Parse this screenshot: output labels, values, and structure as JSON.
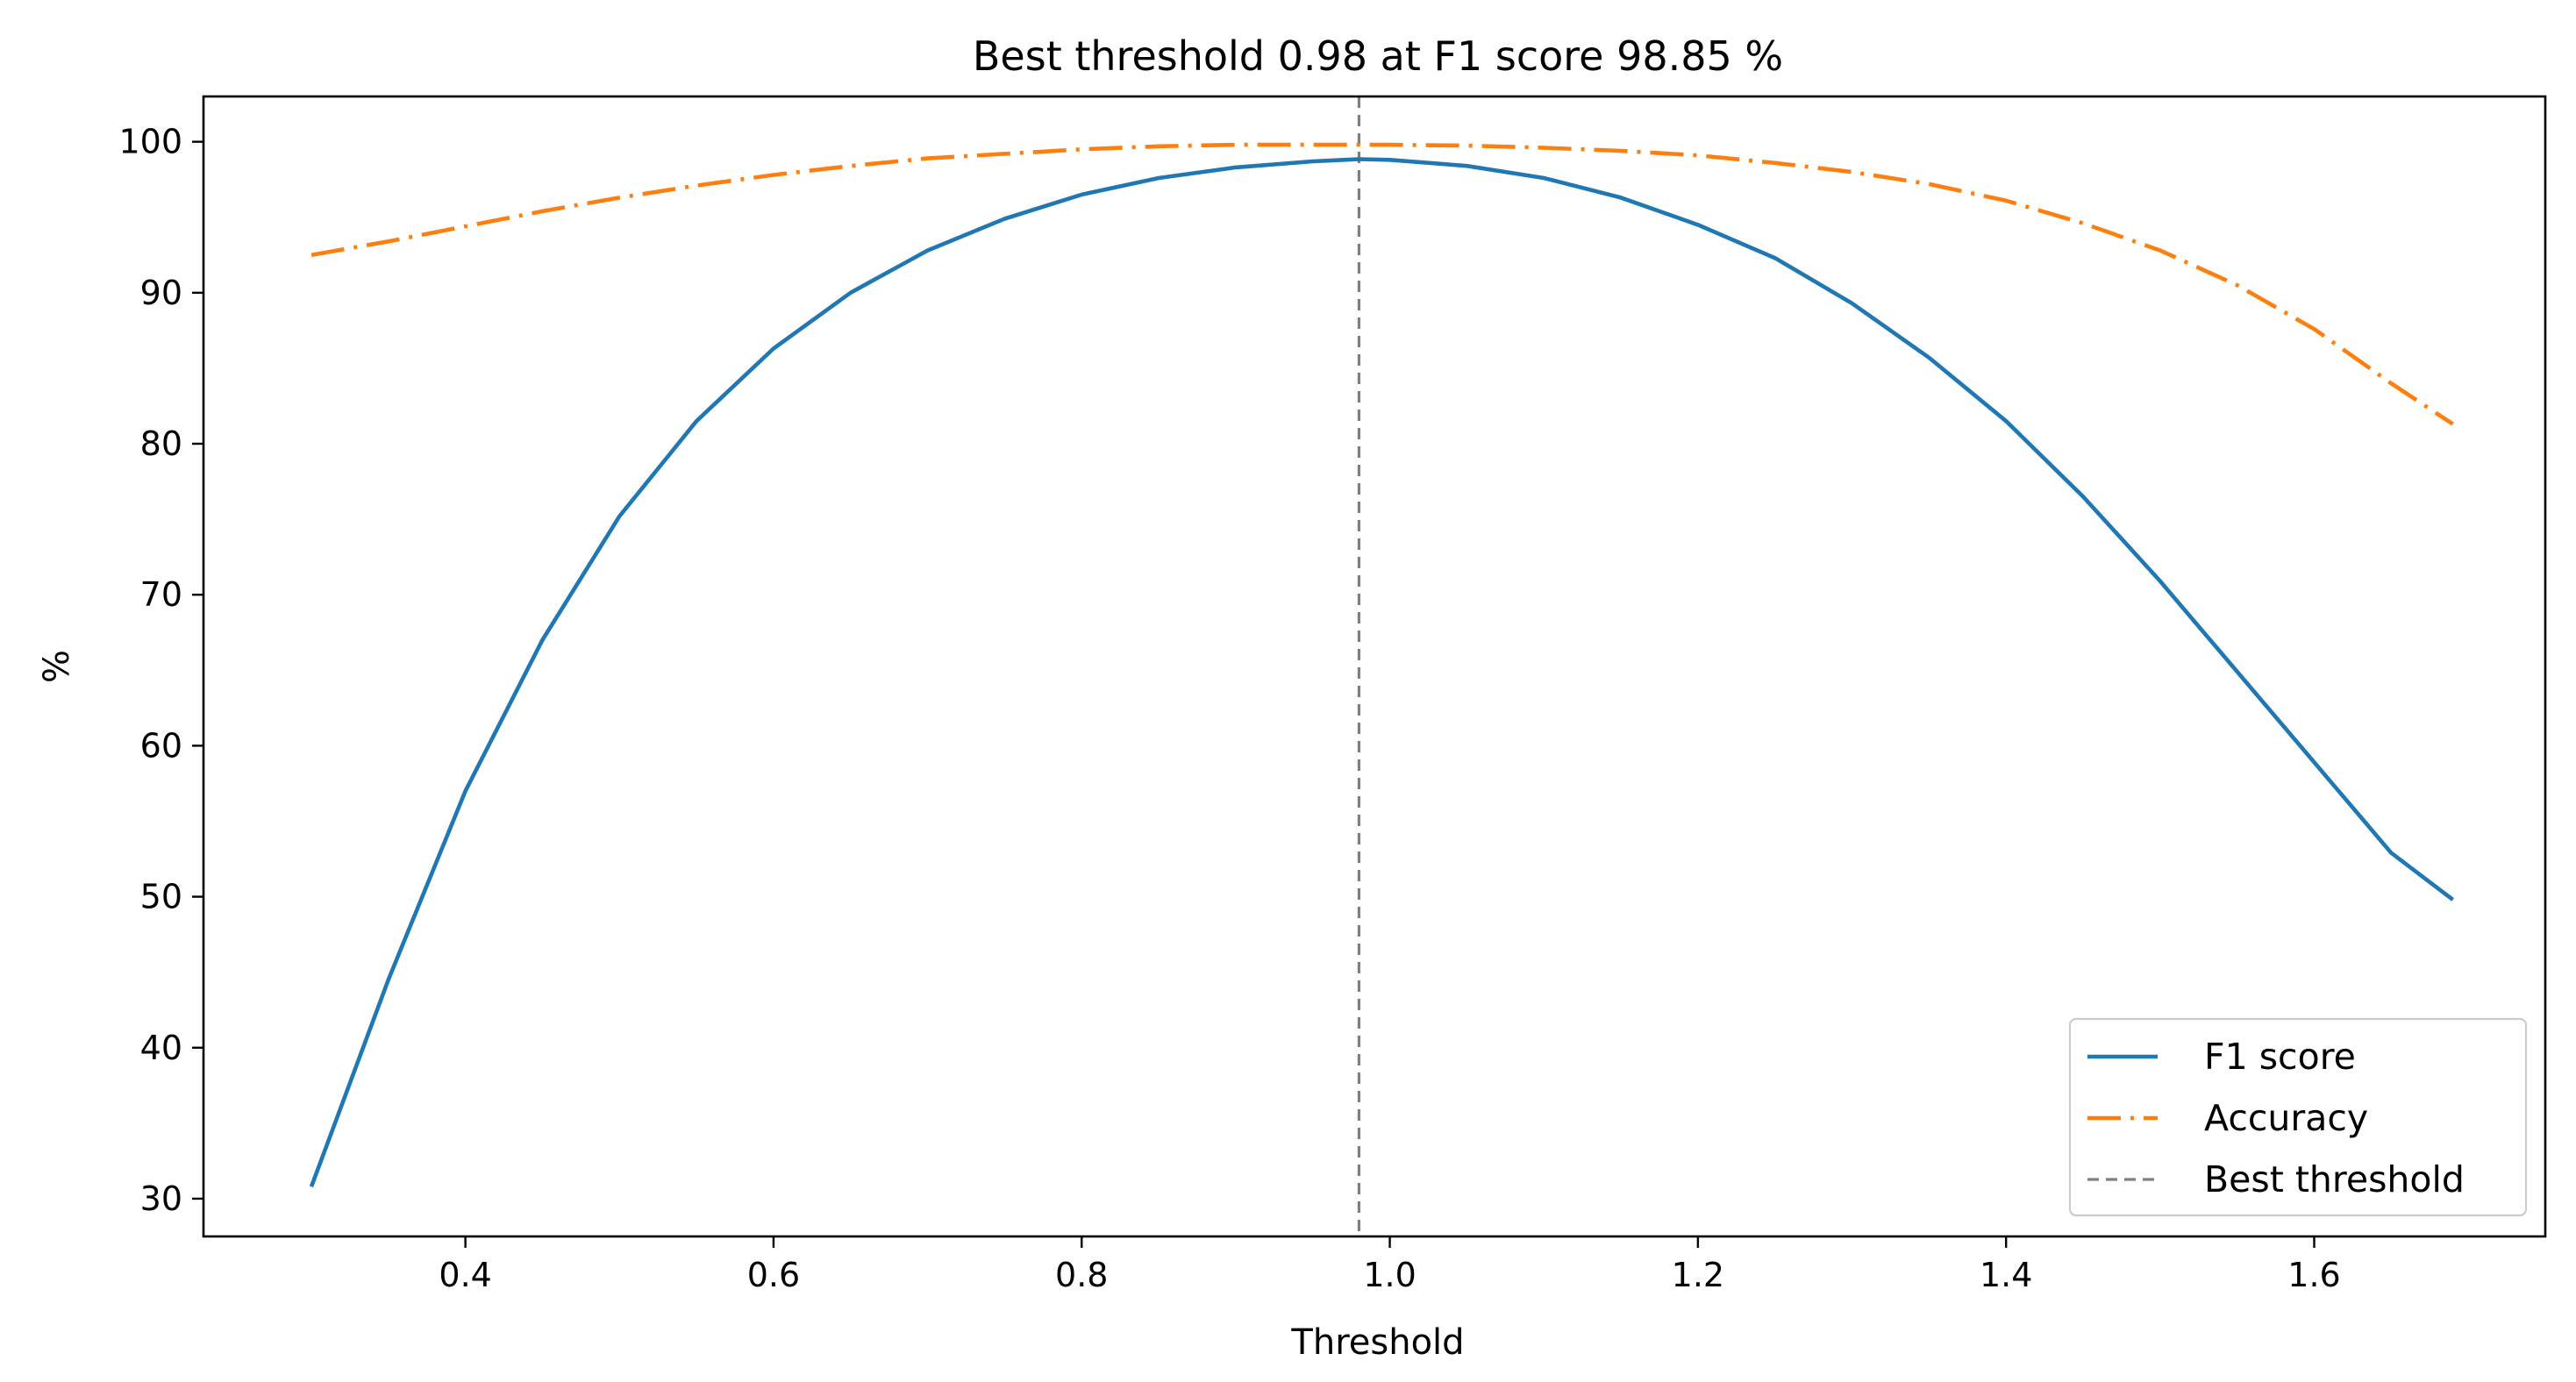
{
  "chart_data": {
    "type": "line",
    "title": "Best threshold 0.98 at F1 score 98.85 %",
    "xlabel": "Threshold",
    "ylabel": "%",
    "xlim": [
      0.23,
      1.75
    ],
    "ylim": [
      27.5,
      103
    ],
    "xticks": [
      "0.4",
      "0.6",
      "0.8",
      "1.0",
      "1.2",
      "1.4",
      "1.6"
    ],
    "yticks": [
      "30",
      "40",
      "50",
      "60",
      "70",
      "80",
      "90",
      "100"
    ],
    "grid": false,
    "legend_position": "lower right",
    "x": [
      0.3,
      0.35,
      0.4,
      0.45,
      0.5,
      0.55,
      0.6,
      0.65,
      0.7,
      0.75,
      0.8,
      0.85,
      0.9,
      0.95,
      0.98,
      1.0,
      1.05,
      1.1,
      1.15,
      1.2,
      1.25,
      1.3,
      1.35,
      1.4,
      1.45,
      1.5,
      1.55,
      1.6,
      1.65,
      1.69
    ],
    "series": [
      {
        "name": "F1 score",
        "color": "#1f77b4",
        "style": "solid",
        "values": [
          30.8,
          44.5,
          57.0,
          67.0,
          75.2,
          81.5,
          86.3,
          90.0,
          92.8,
          94.9,
          96.5,
          97.6,
          98.3,
          98.7,
          98.85,
          98.8,
          98.4,
          97.6,
          96.3,
          94.5,
          92.3,
          89.3,
          85.7,
          81.5,
          76.5,
          70.9,
          64.9,
          58.9,
          52.9,
          49.8
        ]
      },
      {
        "name": "Accuracy",
        "color": "#ff7f0e",
        "style": "dashdot",
        "values": [
          92.5,
          93.4,
          94.4,
          95.4,
          96.3,
          97.1,
          97.8,
          98.4,
          98.9,
          99.2,
          99.5,
          99.7,
          99.8,
          99.8,
          99.8,
          99.8,
          99.75,
          99.6,
          99.4,
          99.1,
          98.6,
          98.0,
          97.2,
          96.1,
          94.6,
          92.8,
          90.5,
          87.6,
          84.0,
          81.3
        ]
      }
    ],
    "vlines": [
      {
        "name": "Best threshold",
        "x": 0.98,
        "color": "#7f7f7f",
        "style": "dashed"
      }
    ]
  }
}
